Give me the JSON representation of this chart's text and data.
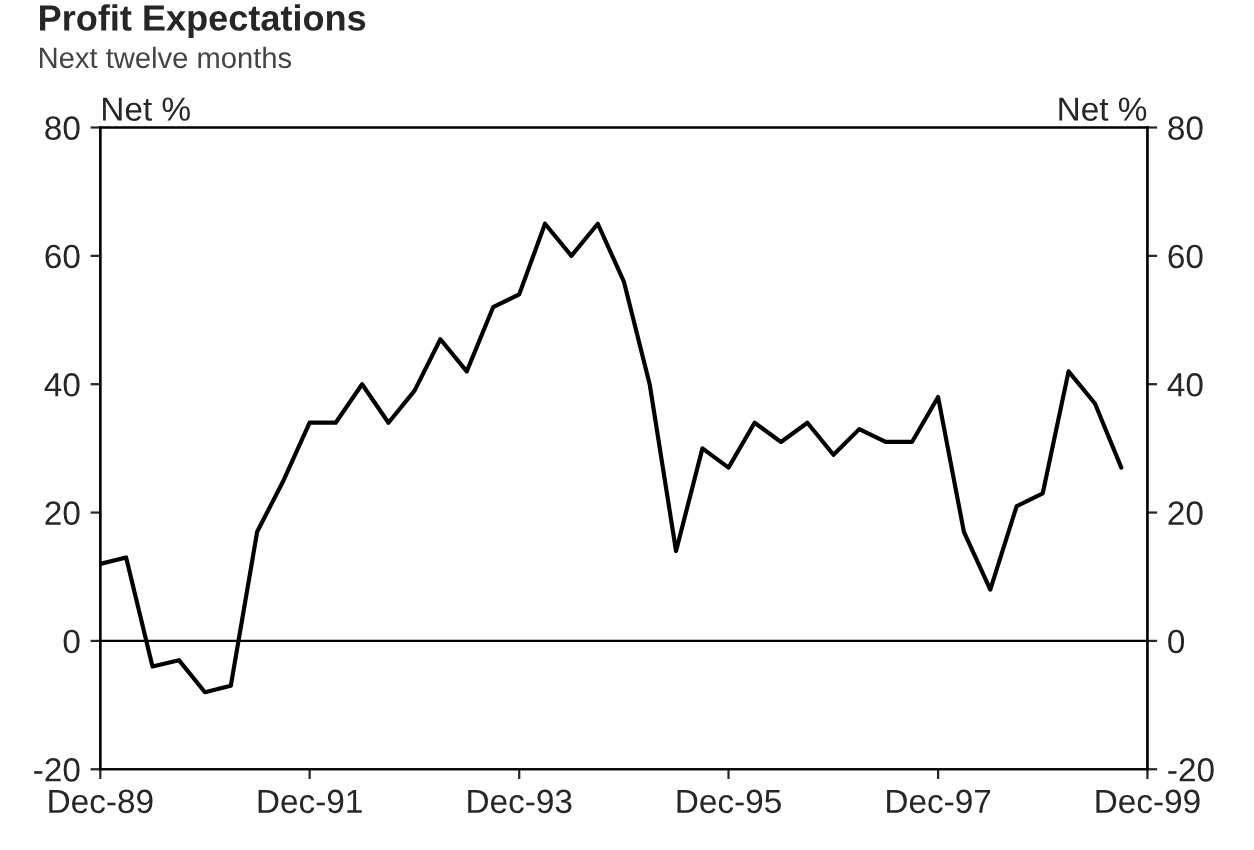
{
  "chart_data": {
    "type": "line",
    "title": "Profit Expectations",
    "subtitle": "Next twelve months",
    "ylabel": "Net %",
    "y2label": "Net %",
    "x": [
      "1989-12",
      "1990-03",
      "1990-06",
      "1990-09",
      "1990-12",
      "1991-03",
      "1991-06",
      "1991-09",
      "1991-12",
      "1992-03",
      "1992-06",
      "1992-09",
      "1992-12",
      "1993-03",
      "1993-06",
      "1993-09",
      "1993-12",
      "1994-03",
      "1994-06",
      "1994-09",
      "1994-12",
      "1995-03",
      "1995-06",
      "1995-09",
      "1995-12",
      "1996-03",
      "1996-06",
      "1996-09",
      "1996-12",
      "1997-03",
      "1997-06",
      "1997-09",
      "1997-12",
      "1998-03",
      "1998-06",
      "1998-09",
      "1998-12",
      "1999-03",
      "1999-06",
      "1999-09"
    ],
    "series": [
      {
        "color": "#000000",
        "values": [
          12,
          13,
          -4,
          -3,
          -8,
          -7,
          17,
          25,
          34,
          34,
          40,
          34,
          39,
          47,
          42,
          52,
          54,
          65,
          60,
          65,
          56,
          40,
          14,
          30,
          27,
          34,
          31,
          34,
          29,
          33,
          31,
          31,
          38,
          17,
          8,
          21,
          23,
          42,
          37,
          27
        ]
      }
    ],
    "xlim": [
      "1989-12",
      "1999-12"
    ],
    "xticks": [
      {
        "value": "1989-12",
        "label": "Dec-89"
      },
      {
        "value": "1991-12",
        "label": "Dec-91"
      },
      {
        "value": "1993-12",
        "label": "Dec-93"
      },
      {
        "value": "1995-12",
        "label": "Dec-95"
      },
      {
        "value": "1997-12",
        "label": "Dec-97"
      },
      {
        "value": "1999-12",
        "label": "Dec-99"
      }
    ],
    "ylim": [
      -20,
      80
    ],
    "yticks": [
      -20,
      0,
      20,
      40,
      60,
      80
    ],
    "y2lim": [
      -20,
      80
    ],
    "y2ticks": [
      -20,
      0,
      20,
      40,
      60,
      80
    ],
    "ref_lines": [
      {
        "axis": "y",
        "value": 0,
        "color": "#000000"
      }
    ],
    "grid": false,
    "legend": false
  }
}
